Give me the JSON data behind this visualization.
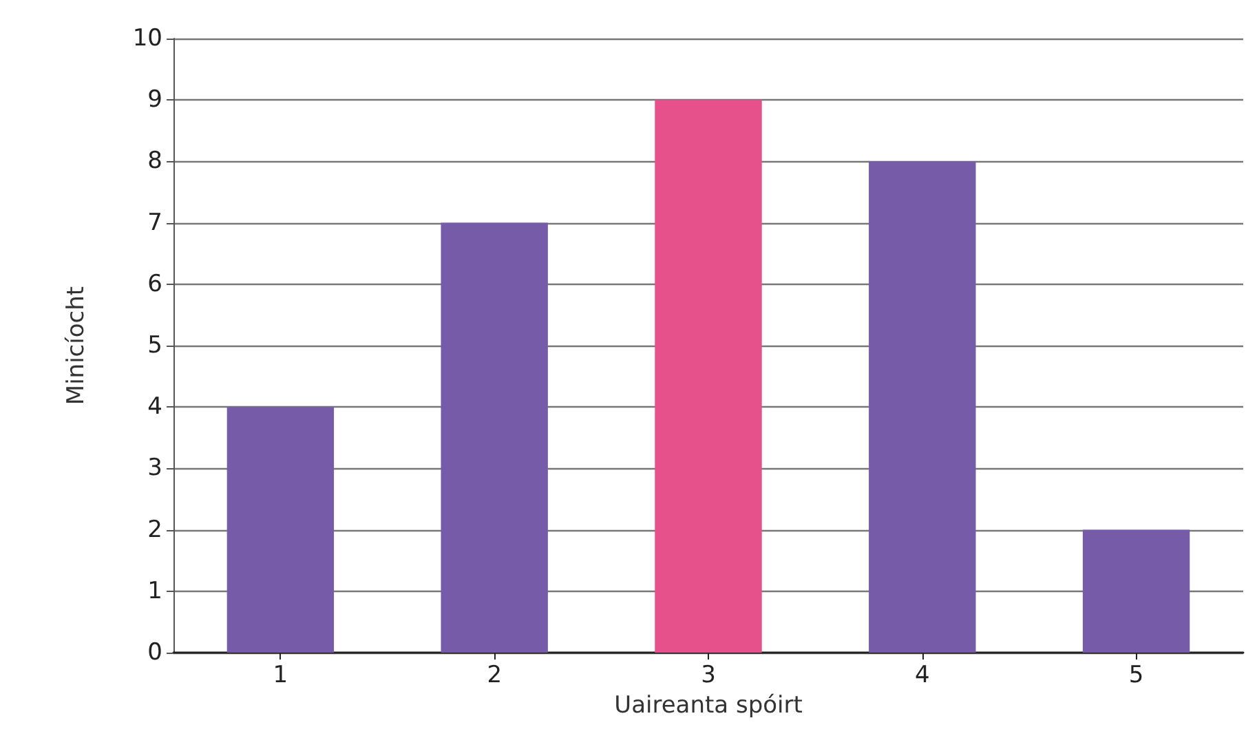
{
  "chart_data": {
    "type": "bar",
    "xlabel": "Uaireanta spóirt",
    "ylabel": "Minicíocht",
    "categories": [
      "1",
      "2",
      "3",
      "4",
      "5"
    ],
    "values": [
      4,
      7,
      9,
      8,
      2
    ],
    "colors": [
      "#765ca8",
      "#765ca8",
      "#e6508b",
      "#765ca8",
      "#765ca8"
    ],
    "ylim": [
      0,
      10
    ],
    "yticks": [
      0,
      1,
      2,
      3,
      4,
      5,
      6,
      7,
      8,
      9,
      10
    ],
    "grid": "y"
  }
}
